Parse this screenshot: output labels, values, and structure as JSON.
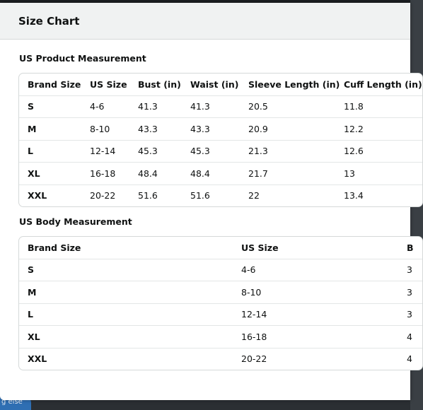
{
  "modal": {
    "title": "Size Chart"
  },
  "background": {
    "chip_text": "g else"
  },
  "product_measurement": {
    "title": "US Product Measurement",
    "headers": [
      "Brand Size",
      "US Size",
      "Bust (in)",
      "Waist (in)",
      "Sleeve Length (in)",
      "Cuff Length (in)"
    ],
    "rows": [
      [
        "S",
        "4-6",
        "41.3",
        "41.3",
        "20.5",
        "11.8"
      ],
      [
        "M",
        "8-10",
        "43.3",
        "43.3",
        "20.9",
        "12.2"
      ],
      [
        "L",
        "12-14",
        "45.3",
        "45.3",
        "21.3",
        "12.6"
      ],
      [
        "XL",
        "16-18",
        "48.4",
        "48.4",
        "21.7",
        "13"
      ],
      [
        "XXL",
        "20-22",
        "51.6",
        "51.6",
        "22",
        "13.4"
      ]
    ]
  },
  "body_measurement": {
    "title": "US Body Measurement",
    "headers": [
      "Brand Size",
      "US Size",
      "B"
    ],
    "rows": [
      [
        "S",
        "4-6",
        "3"
      ],
      [
        "M",
        "8-10",
        "3"
      ],
      [
        "L",
        "12-14",
        "3"
      ],
      [
        "XL",
        "16-18",
        "4"
      ],
      [
        "XXL",
        "20-22",
        "4"
      ]
    ]
  }
}
